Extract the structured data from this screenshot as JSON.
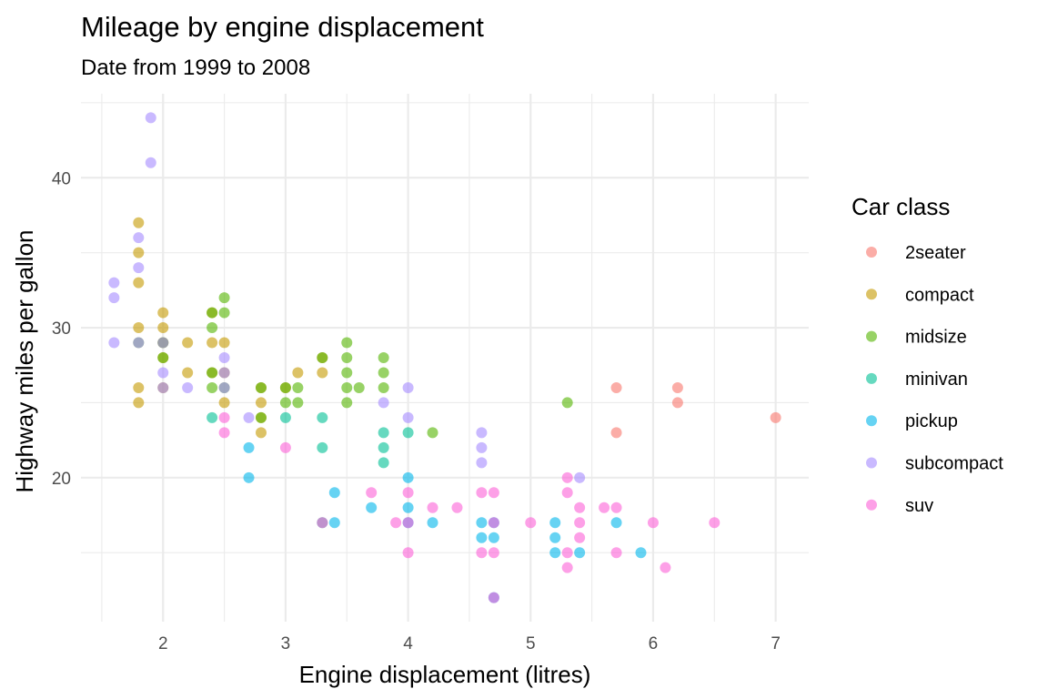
{
  "chart_data": {
    "type": "scatter",
    "title": "Mileage by engine displacement",
    "subtitle": "Date from 1999 to 2008",
    "xlabel": "Engine displacement (litres)",
    "ylabel": "Highway miles per gallon",
    "xlim": [
      1.33,
      7.27
    ],
    "ylim": [
      10.4,
      45.6
    ],
    "x_ticks": [
      2,
      3,
      4,
      5,
      6,
      7
    ],
    "y_ticks": [
      20,
      30,
      40
    ],
    "grid": true,
    "legend": {
      "title": "Car class",
      "position": "right"
    },
    "series": [
      {
        "name": "2seater",
        "color": "#F8766D",
        "points": [
          [
            5.7,
            26
          ],
          [
            5.7,
            23
          ],
          [
            6.2,
            26
          ],
          [
            6.2,
            25
          ],
          [
            7.0,
            24
          ]
        ]
      },
      {
        "name": "compact",
        "color": "#C49A00",
        "points": [
          [
            1.8,
            37
          ],
          [
            1.8,
            35
          ],
          [
            1.8,
            33
          ],
          [
            1.8,
            30
          ],
          [
            1.8,
            26
          ],
          [
            1.8,
            25
          ],
          [
            2.0,
            31
          ],
          [
            2.0,
            30
          ],
          [
            2.0,
            29
          ],
          [
            2.0,
            28
          ],
          [
            2.0,
            26
          ],
          [
            2.2,
            29
          ],
          [
            2.2,
            27
          ],
          [
            2.4,
            31
          ],
          [
            2.4,
            29
          ],
          [
            2.4,
            27
          ],
          [
            2.5,
            29
          ],
          [
            2.5,
            27
          ],
          [
            2.5,
            25
          ],
          [
            2.8,
            26
          ],
          [
            2.8,
            25
          ],
          [
            2.8,
            24
          ],
          [
            2.8,
            23
          ],
          [
            3.0,
            26
          ],
          [
            3.1,
            27
          ],
          [
            3.3,
            28
          ],
          [
            3.3,
            27
          ]
        ]
      },
      {
        "name": "midsize",
        "color": "#53B400",
        "points": [
          [
            1.8,
            29
          ],
          [
            2.0,
            29
          ],
          [
            2.0,
            28
          ],
          [
            2.4,
            31
          ],
          [
            2.4,
            30
          ],
          [
            2.4,
            27
          ],
          [
            2.4,
            26
          ],
          [
            2.5,
            32
          ],
          [
            2.5,
            31
          ],
          [
            2.5,
            26
          ],
          [
            2.8,
            26
          ],
          [
            2.8,
            24
          ],
          [
            3.0,
            26
          ],
          [
            3.0,
            25
          ],
          [
            3.1,
            26
          ],
          [
            3.1,
            25
          ],
          [
            3.3,
            28
          ],
          [
            3.5,
            29
          ],
          [
            3.5,
            28
          ],
          [
            3.5,
            27
          ],
          [
            3.5,
            26
          ],
          [
            3.5,
            25
          ],
          [
            3.6,
            26
          ],
          [
            3.8,
            28
          ],
          [
            3.8,
            27
          ],
          [
            3.8,
            26
          ],
          [
            4.2,
            23
          ],
          [
            5.3,
            25
          ]
        ]
      },
      {
        "name": "minivan",
        "color": "#00C094",
        "points": [
          [
            2.4,
            24
          ],
          [
            3.0,
            24
          ],
          [
            3.3,
            24
          ],
          [
            3.3,
            22
          ],
          [
            3.8,
            23
          ],
          [
            3.8,
            22
          ],
          [
            3.8,
            21
          ],
          [
            4.0,
            23
          ],
          [
            3.3,
            17
          ]
        ]
      },
      {
        "name": "pickup",
        "color": "#00B6EB",
        "points": [
          [
            2.7,
            22
          ],
          [
            2.7,
            20
          ],
          [
            3.4,
            19
          ],
          [
            3.4,
            17
          ],
          [
            3.7,
            18
          ],
          [
            4.0,
            20
          ],
          [
            4.0,
            18
          ],
          [
            4.0,
            17
          ],
          [
            4.2,
            17
          ],
          [
            4.6,
            17
          ],
          [
            4.6,
            16
          ],
          [
            4.7,
            17
          ],
          [
            4.7,
            16
          ],
          [
            4.7,
            12
          ],
          [
            5.2,
            17
          ],
          [
            5.2,
            16
          ],
          [
            5.2,
            15
          ],
          [
            5.4,
            15
          ],
          [
            5.7,
            17
          ],
          [
            5.9,
            15
          ]
        ]
      },
      {
        "name": "subcompact",
        "color": "#A58AFF",
        "points": [
          [
            1.6,
            33
          ],
          [
            1.6,
            32
          ],
          [
            1.6,
            29
          ],
          [
            1.8,
            36
          ],
          [
            1.8,
            34
          ],
          [
            1.8,
            29
          ],
          [
            1.9,
            44
          ],
          [
            1.9,
            41
          ],
          [
            2.0,
            29
          ],
          [
            2.0,
            27
          ],
          [
            2.0,
            26
          ],
          [
            2.2,
            26
          ],
          [
            2.5,
            28
          ],
          [
            2.5,
            27
          ],
          [
            2.5,
            26
          ],
          [
            2.7,
            24
          ],
          [
            3.8,
            25
          ],
          [
            4.0,
            26
          ],
          [
            4.0,
            24
          ],
          [
            4.6,
            23
          ],
          [
            4.6,
            22
          ],
          [
            4.6,
            21
          ],
          [
            5.4,
            20
          ]
        ]
      },
      {
        "name": "suv",
        "color": "#FB61D7",
        "points": [
          [
            2.5,
            24
          ],
          [
            2.5,
            23
          ],
          [
            3.0,
            22
          ],
          [
            3.3,
            17
          ],
          [
            3.7,
            19
          ],
          [
            3.9,
            17
          ],
          [
            4.0,
            19
          ],
          [
            4.0,
            17
          ],
          [
            4.0,
            15
          ],
          [
            4.2,
            18
          ],
          [
            4.4,
            18
          ],
          [
            4.6,
            19
          ],
          [
            4.6,
            15
          ],
          [
            4.7,
            19
          ],
          [
            4.7,
            17
          ],
          [
            4.7,
            15
          ],
          [
            4.7,
            12
          ],
          [
            5.0,
            17
          ],
          [
            5.3,
            20
          ],
          [
            5.3,
            19
          ],
          [
            5.3,
            15
          ],
          [
            5.3,
            14
          ],
          [
            5.4,
            18
          ],
          [
            5.4,
            17
          ],
          [
            5.4,
            16
          ],
          [
            5.6,
            18
          ],
          [
            5.7,
            18
          ],
          [
            5.7,
            15
          ],
          [
            6.0,
            17
          ],
          [
            6.1,
            14
          ],
          [
            6.5,
            17
          ]
        ]
      }
    ]
  }
}
